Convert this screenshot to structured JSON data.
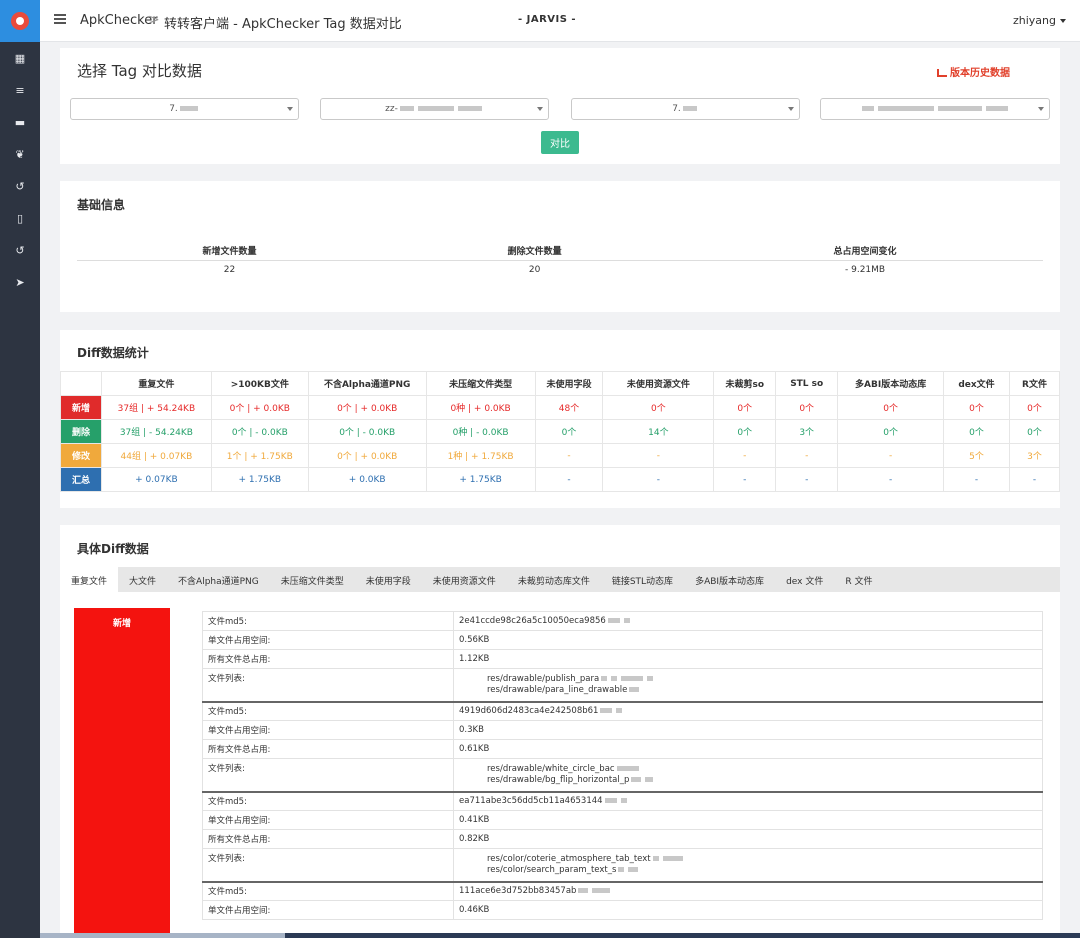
{
  "sidebar": {
    "logo": "logo-icon",
    "items": [
      {
        "icon": "grid-icon",
        "glyph": "▦"
      },
      {
        "icon": "list-icon",
        "glyph": "≡"
      },
      {
        "icon": "card-icon",
        "glyph": "▬"
      },
      {
        "icon": "leaf-icon",
        "glyph": "❦"
      },
      {
        "icon": "history-icon",
        "glyph": "↺"
      },
      {
        "icon": "mobile-icon",
        "glyph": "▯"
      },
      {
        "icon": "refresh-icon",
        "glyph": "↺"
      },
      {
        "icon": "send-icon",
        "glyph": "➤"
      }
    ]
  },
  "header": {
    "app": "ApkChecker",
    "separator": ">",
    "page": "转转客户端 - ApkChecker Tag 数据对比",
    "brand": "- JARVIS -",
    "user": "zhiyang"
  },
  "select_panel": {
    "title": "选择 Tag 对比数据",
    "history_link": "版本历史数据",
    "selects": [
      {
        "value": "7.",
        "label_visible": "7."
      },
      {
        "value": "zz-",
        "label_visible": "zz-"
      },
      {
        "value": "7.",
        "label_visible": "7."
      },
      {
        "value": "",
        "label_visible": ""
      }
    ],
    "compare_button": "对比"
  },
  "basic_info": {
    "title": "基础信息",
    "headers": [
      "新增文件数量",
      "删除文件数量",
      "总占用空间变化"
    ],
    "values": [
      "22",
      "20",
      "- 9.21MB"
    ]
  },
  "diff_stats": {
    "title": "Diff数据统计",
    "headers": [
      "",
      "重复文件",
      ">100KB文件",
      "不含Alpha通道PNG",
      "未压缩文件类型",
      "未使用字段",
      "未使用资源文件",
      "未裁剪so",
      "STL so",
      "多ABI版本动态库",
      "dex文件",
      "R文件"
    ],
    "rows": [
      {
        "label": "新增",
        "cells": [
          "37组 | + 54.24KB",
          "0个 | + 0.0KB",
          "0个 | + 0.0KB",
          "0种 | + 0.0KB",
          "48个",
          "0个",
          "0个",
          "0个",
          "0个",
          "0个",
          "0个"
        ]
      },
      {
        "label": "删除",
        "cells": [
          "37组 | - 54.24KB",
          "0个 | - 0.0KB",
          "0个 | - 0.0KB",
          "0种 | - 0.0KB",
          "0个",
          "14个",
          "0个",
          "3个",
          "0个",
          "0个",
          "0个"
        ]
      },
      {
        "label": "修改",
        "cells": [
          "44组 | + 0.07KB",
          "1个 | + 1.75KB",
          "0个 | + 0.0KB",
          "1种 | + 1.75KB",
          "-",
          "-",
          "-",
          "-",
          "-",
          "5个",
          "3个"
        ]
      },
      {
        "label": "汇总",
        "cells": [
          "+ 0.07KB",
          "+ 1.75KB",
          "+ 0.0KB",
          "+ 1.75KB",
          "-",
          "-",
          "-",
          "-",
          "-",
          "-",
          "-"
        ]
      }
    ]
  },
  "detail": {
    "title": "具体Diff数据",
    "tabs": [
      "重复文件",
      "大文件",
      "不含Alpha通道PNG",
      "未压缩文件类型",
      "未使用字段",
      "未使用资源文件",
      "未裁剪动态库文件",
      "链接STL动态库",
      "多ABI版本动态库",
      "dex 文件",
      "R 文件"
    ],
    "side_label": "新增",
    "groups": [
      {
        "md5_label": "文件md5:",
        "md5": "2e41ccde98c26a5c10050eca9856",
        "size_label": "单文件占用空间:",
        "size": "0.56KB",
        "total_label": "所有文件总占用:",
        "total": "1.12KB",
        "files_label": "文件列表:",
        "files": [
          "res/drawable/publish_para",
          "res/drawable/para_line_drawable"
        ]
      },
      {
        "md5_label": "文件md5:",
        "md5": "4919d606d2483ca4e242508b61",
        "size_label": "单文件占用空间:",
        "size": "0.3KB",
        "total_label": "所有文件总占用:",
        "total": "0.61KB",
        "files_label": "文件列表:",
        "files": [
          "res/drawable/white_circle_bac",
          "res/drawable/bg_flip_horizontal_p"
        ]
      },
      {
        "md5_label": "文件md5:",
        "md5": "ea711abe3c56dd5cb11a4653144",
        "size_label": "单文件占用空间:",
        "size": "0.41KB",
        "total_label": "所有文件总占用:",
        "total": "0.82KB",
        "files_label": "文件列表:",
        "files": [
          "res/color/coterie_atmosphere_tab_text",
          "res/color/search_param_text_s"
        ]
      },
      {
        "md5_label": "文件md5:",
        "md5": "111ace6e3d752bb83457ab",
        "size_label": "单文件占用空间:",
        "size": "0.46KB"
      }
    ]
  },
  "colors": {
    "sidebar": "#2d3441",
    "accent": "#2d8ee0",
    "added": "#e02b2b",
    "deleted": "#26a06a",
    "modified": "#f0a93c",
    "summary": "#2e6fb0",
    "compare_button": "#3cba8f"
  }
}
